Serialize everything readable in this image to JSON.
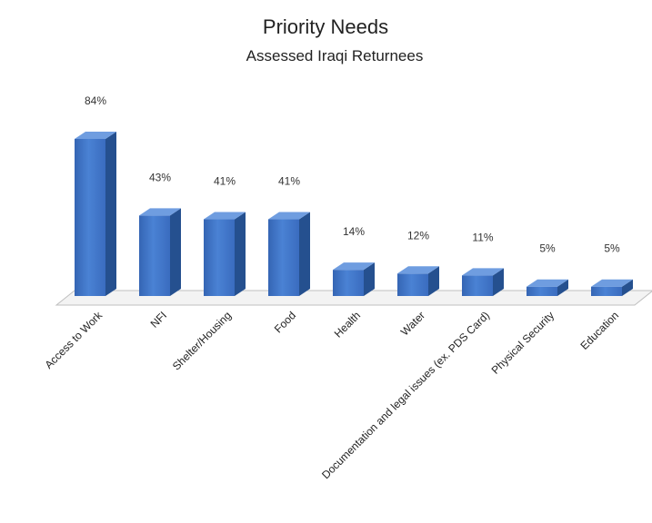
{
  "chart_data": {
    "type": "bar",
    "title": "Priority Needs",
    "subtitle": "Assessed Iraqi Returnees",
    "categories": [
      "Access to Work",
      "NFI",
      "Shelter/Housing",
      "Food",
      "Health",
      "Water",
      "Documentation and legal issues (ex. PDS Card)",
      "Physical Security",
      "Education"
    ],
    "values": [
      84,
      43,
      41,
      41,
      14,
      12,
      11,
      5,
      5
    ],
    "value_labels": [
      "84%",
      "43%",
      "41%",
      "41%",
      "14%",
      "12%",
      "11%",
      "5%",
      "5%"
    ],
    "ylim": [
      0,
      90
    ],
    "grid": false,
    "legend": "none",
    "style": "3d",
    "colors": {
      "bar_front": "#3f74c8",
      "bar_side": "#25508f",
      "bar_top": "#6f9de0",
      "floor": "#f3f3f3"
    }
  }
}
